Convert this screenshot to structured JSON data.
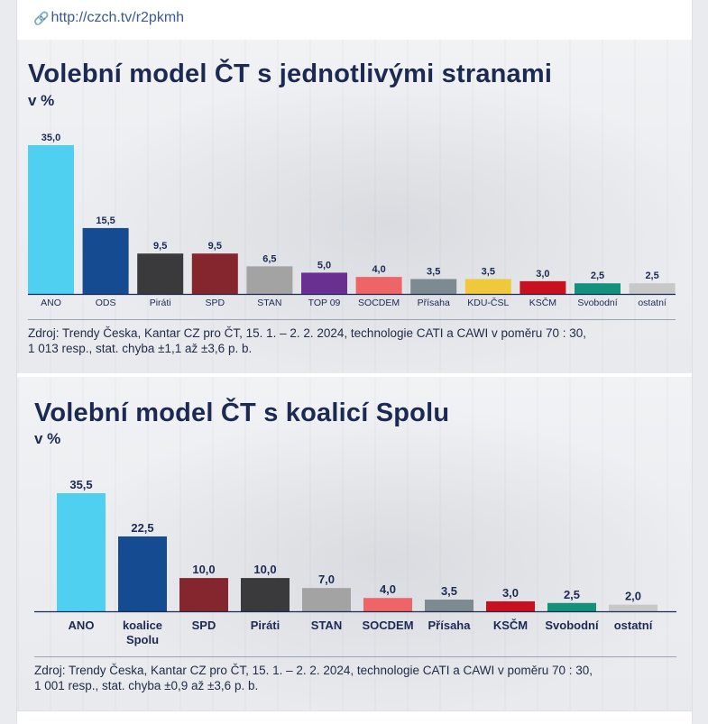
{
  "link": {
    "icon": "link-icon",
    "url": "http://czch.tv/r2pkmh"
  },
  "chart_data": [
    {
      "type": "bar",
      "title": "Volební model ČT s jednotlivými stranami",
      "subtitle": "v %",
      "categories": [
        "ANO",
        "ODS",
        "Piráti",
        "SPD",
        "STAN",
        "TOP 09",
        "SOCDEM",
        "Přísaha",
        "KDU-ČSL",
        "KSČM",
        "Svobodní",
        "ostatní"
      ],
      "values": [
        35.0,
        15.5,
        9.5,
        9.5,
        6.5,
        5.0,
        4.0,
        3.5,
        3.5,
        3.0,
        2.5,
        2.5
      ],
      "value_labels": [
        "35,0",
        "15,5",
        "9,5",
        "9,5",
        "6,5",
        "5,0",
        "4,0",
        "3,5",
        "3,5",
        "3,0",
        "2,5",
        "2,5"
      ],
      "colors": [
        "#4fd0f0",
        "#154b91",
        "#3a3a3c",
        "#85262e",
        "#a3a3a3",
        "#6a2f93",
        "#ef6466",
        "#7d8a91",
        "#f0c93a",
        "#c8101e",
        "#13927b",
        "#c8c8c8"
      ],
      "ylim": [
        0,
        35.0
      ],
      "grid": false,
      "source": [
        "Zdroj: Trendy Česka, Kantar CZ pro ČT, 15. 1. – 2. 2. 2024, technologie CATI a CAWI v poměru 70 : 30,",
        "1 013 resp., stat. chyba ±1,1 až ±3,6 p. b."
      ]
    },
    {
      "type": "bar",
      "title": "Volební model ČT s koalicí Spolu",
      "subtitle": "v %",
      "categories": [
        "ANO",
        "koalice\nSpolu",
        "SPD",
        "Piráti",
        "STAN",
        "SOCDEM",
        "Přísaha",
        "KSČM",
        "Svobodní",
        "ostatní"
      ],
      "values": [
        35.5,
        22.5,
        10.0,
        10.0,
        7.0,
        4.0,
        3.5,
        3.0,
        2.5,
        2.0
      ],
      "value_labels": [
        "35,5",
        "22,5",
        "10,0",
        "10,0",
        "7,0",
        "4,0",
        "3,5",
        "3,0",
        "2,5",
        "2,0"
      ],
      "colors": [
        "#4fd0f0",
        "#154b91",
        "#85262e",
        "#3a3a3c",
        "#a3a3a3",
        "#ef6466",
        "#7d8a91",
        "#c8101e",
        "#13927b",
        "#c8c8c8"
      ],
      "ylim": [
        0,
        35.5
      ],
      "grid": false,
      "source": [
        "Zdroj: Trendy Česka, Kantar CZ pro ČT, 15. 1. – 2. 2. 2024, technologie CATI a CAWI v poměru 70 : 30,",
        "1 001 resp., stat. chyba ±0,9 až ±3,6 p. b."
      ]
    }
  ]
}
